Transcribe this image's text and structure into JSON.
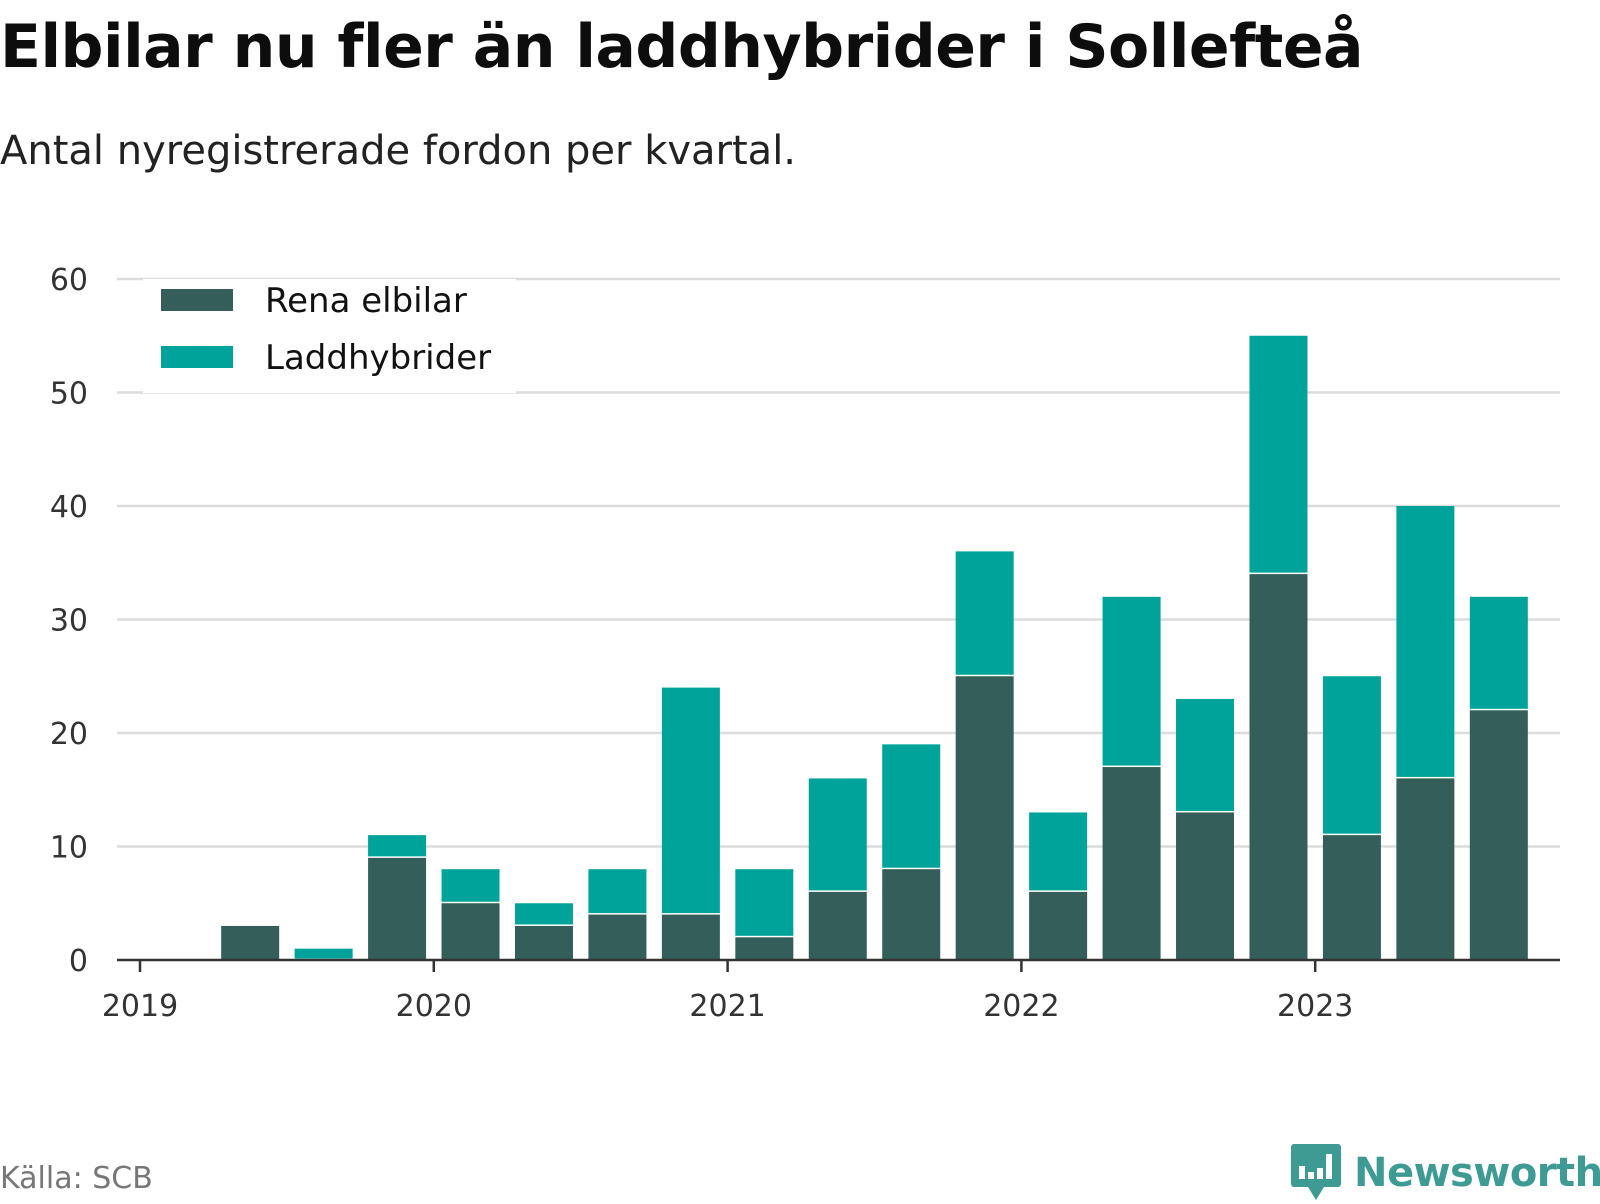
{
  "title": "Elbilar nu fler än laddhybrider i Sollefteå",
  "subtitle": "Antal nyregistrerade fordon per kvartal.",
  "source": "Källa: SCB",
  "brand": "Newsworthy",
  "chart_data": {
    "type": "bar",
    "stacked": true,
    "categories": [
      "2019 Q1",
      "2019 Q2",
      "2019 Q3",
      "2019 Q4",
      "2020 Q1",
      "2020 Q2",
      "2020 Q3",
      "2020 Q4",
      "2021 Q1",
      "2021 Q2",
      "2021 Q3",
      "2021 Q4",
      "2022 Q1",
      "2022 Q2",
      "2022 Q3",
      "2022 Q4",
      "2023 Q1",
      "2023 Q2",
      "2023 Q3",
      "2023 Q4"
    ],
    "series": [
      {
        "name": "Rena elbilar",
        "color": "#335e5a",
        "values": [
          null,
          3,
          0,
          9,
          5,
          3,
          4,
          4,
          2,
          6,
          8,
          25,
          6,
          17,
          13,
          34,
          11,
          16,
          22,
          null
        ]
      },
      {
        "name": "Laddhybrider",
        "color": "#00a39a",
        "values": [
          null,
          0,
          1,
          2,
          3,
          2,
          4,
          20,
          6,
          10,
          11,
          11,
          7,
          15,
          10,
          21,
          14,
          24,
          10,
          null
        ]
      }
    ],
    "x_tick_labels": [
      "2019",
      "2020",
      "2021",
      "2022",
      "2023"
    ],
    "y_ticks": [
      0,
      10,
      20,
      30,
      40,
      50,
      60
    ],
    "ylim": [
      0,
      60
    ],
    "xlabel": "",
    "ylabel": "",
    "legend_position": "top-left",
    "grid": true
  }
}
